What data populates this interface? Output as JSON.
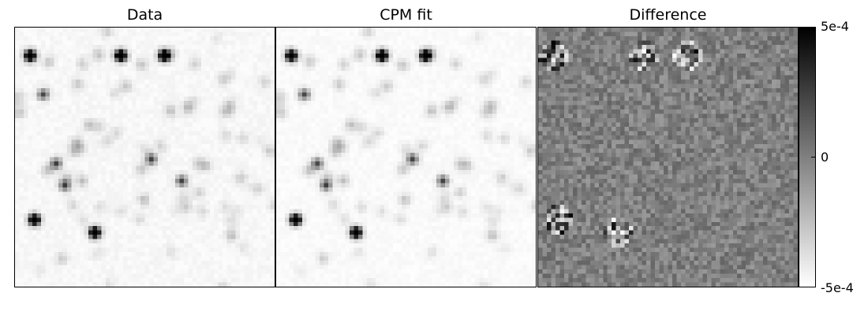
{
  "chart_data": [
    {
      "type": "heatmap",
      "title": "Data",
      "colormap": "gray_r",
      "grid": false,
      "stars": [
        [
          3,
          6
        ],
        [
          24,
          6
        ],
        [
          34,
          6
        ],
        [
          4,
          44
        ],
        [
          18,
          47
        ],
        [
          31,
          30
        ],
        [
          11,
          36
        ],
        [
          6,
          15
        ],
        [
          38,
          35
        ],
        [
          9,
          31
        ]
      ]
    },
    {
      "type": "heatmap",
      "title": "CPM fit",
      "colormap": "gray_r",
      "grid": false
    },
    {
      "type": "heatmap",
      "title": "Difference",
      "colormap": "gray_r",
      "grid": false,
      "colorbar": {
        "ticks": [
          "5e-4",
          "0",
          "-5e-4"
        ],
        "range": [
          -0.0005,
          0.0005
        ]
      }
    }
  ]
}
